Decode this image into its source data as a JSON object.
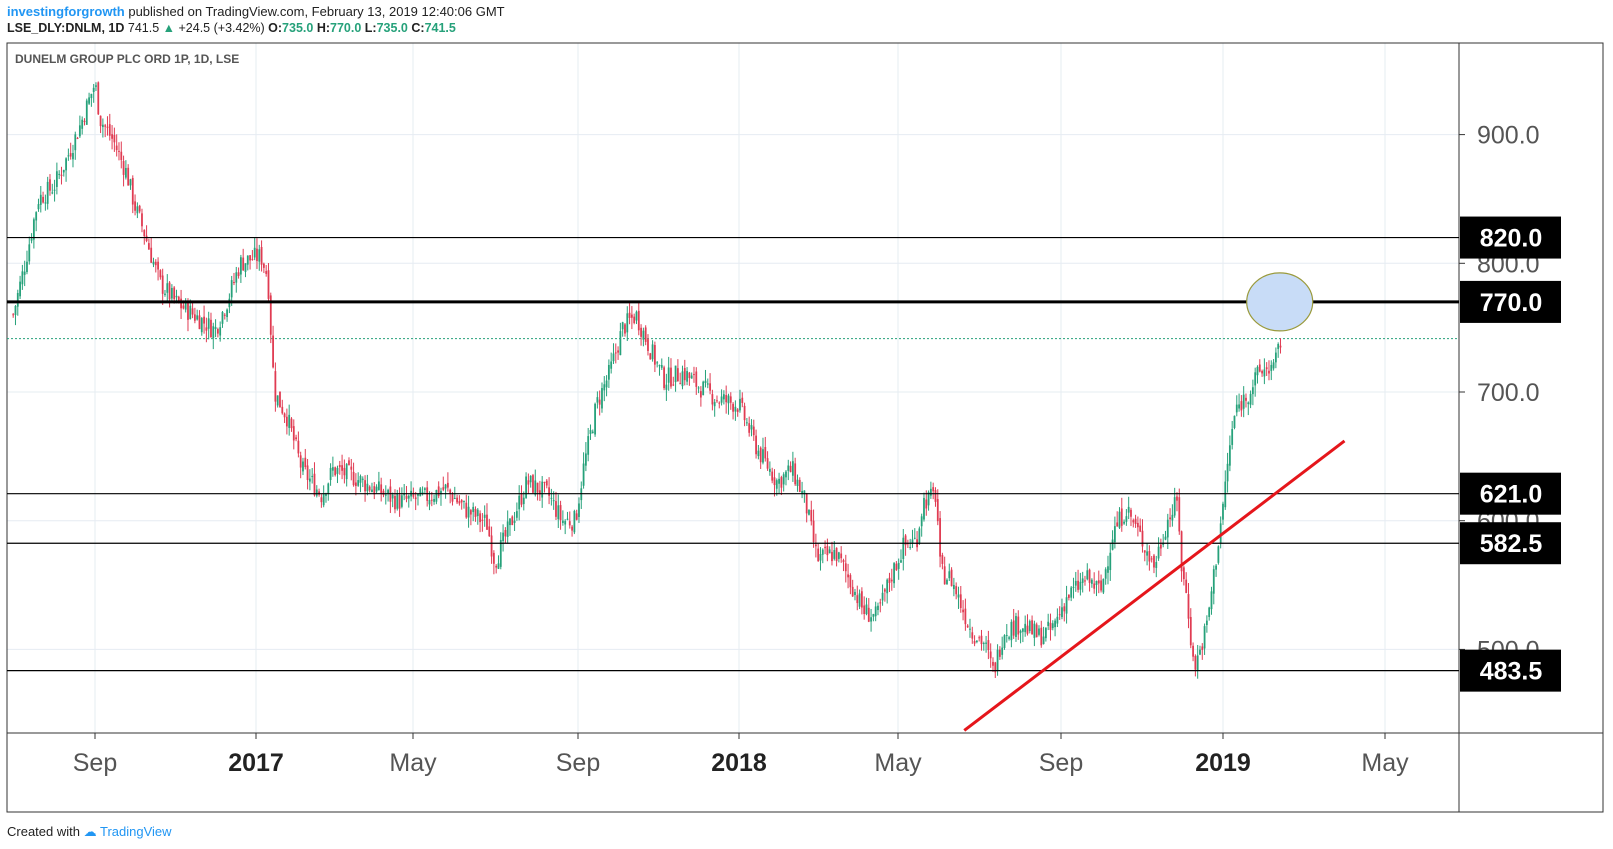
{
  "header": {
    "author": "investingforgrowth",
    "published_text": "published on TradingView.com, February 13, 2019 12:40:06 GMT",
    "symbol": "LSE_DLY:DNLM, 1D",
    "last": "741.5",
    "change": "+24.5 (+3.42%)",
    "o_label": "O:",
    "o_value": "735.0",
    "h_label": "H:",
    "h_value": "770.0",
    "l_label": "L:",
    "l_value": "735.0",
    "c_label": "C:",
    "c_value": "741.5"
  },
  "footer": {
    "created_with": "Created with",
    "brand": "TradingView"
  },
  "colors": {
    "up": "#26a17a",
    "down": "#e03b52",
    "trendline": "#e5161b",
    "highlight_fill": "#c8dcf7",
    "highlight_stroke": "#9a9a3c",
    "level_label_bg": "#000000"
  },
  "chart_data": {
    "type": "candlestick",
    "title": "DUNELM GROUP PLC ORD 1P, 1D, LSE",
    "y_axis_ticks": [
      "500.0",
      "600.0",
      "700.0",
      "800.0",
      "900.0"
    ],
    "x_axis_labels": [
      {
        "label": "Sep",
        "bold": false
      },
      {
        "label": "2017",
        "bold": true
      },
      {
        "label": "May",
        "bold": false
      },
      {
        "label": "Sep",
        "bold": false
      },
      {
        "label": "2018",
        "bold": true
      },
      {
        "label": "May",
        "bold": false
      },
      {
        "label": "Sep",
        "bold": false
      },
      {
        "label": "2019",
        "bold": true
      },
      {
        "label": "May",
        "bold": false
      }
    ],
    "horizontal_levels": [
      {
        "value": 820.0,
        "label": "820.0",
        "weight": "thin"
      },
      {
        "value": 770.0,
        "label": "770.0",
        "weight": "thick"
      },
      {
        "value": 621.0,
        "label": "621.0",
        "weight": "thin"
      },
      {
        "value": 582.5,
        "label": "582.5",
        "weight": "thin"
      },
      {
        "value": 483.5,
        "label": "483.5",
        "weight": "thin"
      }
    ],
    "last_price": 741.5,
    "trendline": {
      "start": [
        "2018-06-20",
        437
      ],
      "end": [
        "2019-04-01",
        662
      ]
    },
    "highlight_circle": {
      "date": "2019-02-12",
      "price": 770
    },
    "price_path_closes": [
      [
        "2016-07-01",
        760
      ],
      [
        "2016-07-10",
        800
      ],
      [
        "2016-07-20",
        850
      ],
      [
        "2016-08-01",
        860
      ],
      [
        "2016-08-10",
        880
      ],
      [
        "2016-08-20",
        905
      ],
      [
        "2016-09-01",
        940
      ],
      [
        "2016-09-05",
        912
      ],
      [
        "2016-09-15",
        895
      ],
      [
        "2016-09-25",
        870
      ],
      [
        "2016-10-01",
        845
      ],
      [
        "2016-10-08",
        825
      ],
      [
        "2016-10-20",
        785
      ],
      [
        "2016-11-01",
        770
      ],
      [
        "2016-11-15",
        760
      ],
      [
        "2016-12-01",
        748
      ],
      [
        "2016-12-10",
        770
      ],
      [
        "2016-12-20",
        800
      ],
      [
        "2017-01-01",
        805
      ],
      [
        "2017-01-05",
        805
      ],
      [
        "2017-01-10",
        790
      ],
      [
        "2017-01-15",
        700
      ],
      [
        "2017-01-25",
        680
      ],
      [
        "2017-02-05",
        640
      ],
      [
        "2017-02-20",
        620
      ],
      [
        "2017-03-01",
        640
      ],
      [
        "2017-03-15",
        635
      ],
      [
        "2017-04-01",
        625
      ],
      [
        "2017-04-20",
        615
      ],
      [
        "2017-05-10",
        618
      ],
      [
        "2017-05-25",
        625
      ],
      [
        "2017-06-10",
        608
      ],
      [
        "2017-06-25",
        598
      ],
      [
        "2017-07-01",
        568
      ],
      [
        "2017-07-10",
        590
      ],
      [
        "2017-07-25",
        630
      ],
      [
        "2017-08-10",
        620
      ],
      [
        "2017-08-20",
        600
      ],
      [
        "2017-08-30",
        600
      ],
      [
        "2017-09-05",
        640
      ],
      [
        "2017-09-15",
        690
      ],
      [
        "2017-09-25",
        715
      ],
      [
        "2017-10-05",
        750
      ],
      [
        "2017-10-15",
        760
      ],
      [
        "2017-10-25",
        735
      ],
      [
        "2017-11-05",
        710
      ],
      [
        "2017-11-20",
        715
      ],
      [
        "2017-12-01",
        705
      ],
      [
        "2017-12-15",
        695
      ],
      [
        "2018-01-01",
        690
      ],
      [
        "2018-01-15",
        655
      ],
      [
        "2018-01-30",
        630
      ],
      [
        "2018-02-10",
        640
      ],
      [
        "2018-02-20",
        615
      ],
      [
        "2018-03-01",
        570
      ],
      [
        "2018-03-15",
        575
      ],
      [
        "2018-03-25",
        555
      ],
      [
        "2018-04-05",
        530
      ],
      [
        "2018-04-15",
        525
      ],
      [
        "2018-04-25",
        555
      ],
      [
        "2018-05-05",
        580
      ],
      [
        "2018-05-15",
        585
      ],
      [
        "2018-05-20",
        615
      ],
      [
        "2018-05-30",
        620
      ],
      [
        "2018-06-02",
        560
      ],
      [
        "2018-06-10",
        555
      ],
      [
        "2018-06-25",
        515
      ],
      [
        "2018-07-05",
        505
      ],
      [
        "2018-07-12",
        482
      ],
      [
        "2018-07-20",
        515
      ],
      [
        "2018-08-01",
        520
      ],
      [
        "2018-08-15",
        510
      ],
      [
        "2018-08-25",
        515
      ],
      [
        "2018-09-05",
        540
      ],
      [
        "2018-09-20",
        555
      ],
      [
        "2018-10-01",
        545
      ],
      [
        "2018-10-10",
        590
      ],
      [
        "2018-10-20",
        610
      ],
      [
        "2018-11-01",
        585
      ],
      [
        "2018-11-10",
        565
      ],
      [
        "2018-11-20",
        600
      ],
      [
        "2018-11-28",
        615
      ],
      [
        "2018-12-01",
        560
      ],
      [
        "2018-12-05",
        540
      ],
      [
        "2018-12-10",
        485
      ],
      [
        "2018-12-15",
        500
      ],
      [
        "2018-12-20",
        520
      ],
      [
        "2018-12-28",
        580
      ],
      [
        "2019-01-02",
        620
      ],
      [
        "2019-01-05",
        650
      ],
      [
        "2019-01-10",
        685
      ],
      [
        "2019-01-20",
        700
      ],
      [
        "2019-01-28",
        715
      ],
      [
        "2019-02-05",
        720
      ],
      [
        "2019-02-08",
        718
      ],
      [
        "2019-02-13",
        741.5
      ]
    ]
  }
}
